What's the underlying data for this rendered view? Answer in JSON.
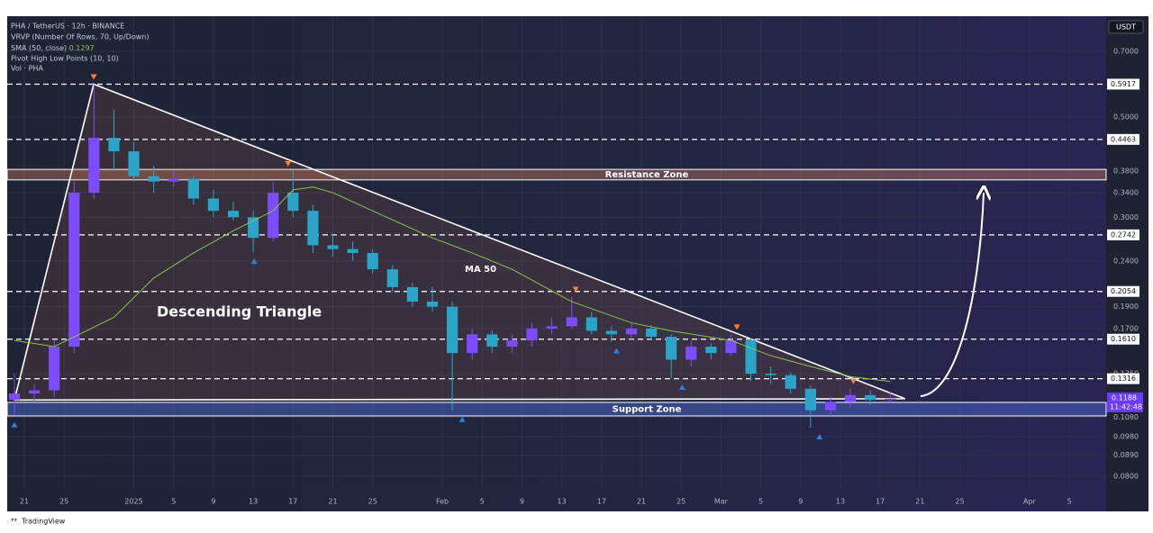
{
  "chart_data": {
    "type": "candlestick",
    "legend": [
      "PHA / TetherUS · 12h · BINANCE",
      "VRVP (Number Of Rows, 70, Up/Down)",
      "SMA (50, close)",
      "Pivot High Low Points (10, 10)",
      "Vol · PHA"
    ],
    "currency": "USDT",
    "log_scale": true,
    "grid": true,
    "up_color": "#7c4dff",
    "down_color": "#2aa5c8",
    "xlim": [
      -1.72,
      108.7
    ],
    "ylim": [
      0.0743,
      0.837
    ],
    "xticks": [
      {
        "value": 0,
        "label": "21"
      },
      {
        "value": 4,
        "label": "25"
      },
      {
        "value": 11,
        "label": "2025"
      },
      {
        "value": 15,
        "label": "5"
      },
      {
        "value": 19,
        "label": "9"
      },
      {
        "value": 23,
        "label": "13"
      },
      {
        "value": 27,
        "label": "17"
      },
      {
        "value": 31,
        "label": "21"
      },
      {
        "value": 35,
        "label": "25"
      },
      {
        "value": 42,
        "label": "Feb"
      },
      {
        "value": 46,
        "label": "5"
      },
      {
        "value": 50,
        "label": "9"
      },
      {
        "value": 54,
        "label": "13"
      },
      {
        "value": 58,
        "label": "17"
      },
      {
        "value": 62,
        "label": "21"
      },
      {
        "value": 66,
        "label": "25"
      },
      {
        "value": 70,
        "label": "Mar"
      },
      {
        "value": 74,
        "label": "5"
      },
      {
        "value": 78,
        "label": "9"
      },
      {
        "value": 82,
        "label": "13"
      },
      {
        "value": 86,
        "label": "17"
      },
      {
        "value": 90,
        "label": "21"
      },
      {
        "value": 94,
        "label": "25"
      },
      {
        "value": 101,
        "label": "Apr"
      },
      {
        "value": 105,
        "label": "5"
      }
    ],
    "yticks": [
      {
        "value": 0.7,
        "label": "0.7000"
      },
      {
        "value": 0.5,
        "label": "0.5000"
      },
      {
        "value": 0.38,
        "label": "0.3800"
      },
      {
        "value": 0.34,
        "label": "0.3400"
      },
      {
        "value": 0.3,
        "label": "0.3000"
      },
      {
        "value": 0.24,
        "label": "0.2400"
      },
      {
        "value": 0.19,
        "label": "0.1900"
      },
      {
        "value": 0.17,
        "label": "0.1700"
      },
      {
        "value": 0.135,
        "label": "0.1350"
      },
      {
        "value": 0.108,
        "label": "0.1080"
      },
      {
        "value": 0.098,
        "label": "0.0980"
      },
      {
        "value": 0.089,
        "label": "0.0890"
      },
      {
        "value": 0.08,
        "label": "0.0800"
      }
    ],
    "levels": [
      0.5917,
      0.4463,
      0.2742,
      0.2054,
      {
        "value": 0.161,
        "label": "0.1610"
      },
      0.1316
    ],
    "last_price": 0.1188,
    "countdown": "11:42:48",
    "candles": {
      "x": [
        -1,
        1,
        3,
        5,
        7,
        9,
        11,
        13,
        15,
        17,
        19,
        21,
        23,
        25,
        27,
        29,
        31,
        33,
        35,
        37,
        39,
        41,
        43,
        45,
        47,
        49,
        51,
        53,
        55,
        57,
        59,
        61,
        63,
        65,
        67,
        69,
        71,
        73,
        75,
        77,
        79,
        81,
        83,
        85,
        87
      ],
      "open": [
        0.118,
        0.122,
        0.124,
        0.155,
        0.34,
        0.45,
        0.42,
        0.37,
        0.36,
        0.365,
        0.33,
        0.31,
        0.3,
        0.27,
        0.34,
        0.31,
        0.26,
        0.255,
        0.25,
        0.23,
        0.21,
        0.195,
        0.19,
        0.15,
        0.165,
        0.155,
        0.16,
        0.17,
        0.172,
        0.18,
        0.168,
        0.165,
        0.17,
        0.163,
        0.145,
        0.155,
        0.15,
        0.16,
        0.135,
        0.134,
        0.125,
        0.112,
        0.117,
        0.121,
        0.118
      ],
      "high": [
        0.135,
        0.128,
        0.16,
        0.36,
        0.5917,
        0.52,
        0.44,
        0.39,
        0.38,
        0.37,
        0.345,
        0.325,
        0.31,
        0.36,
        0.38,
        0.32,
        0.275,
        0.265,
        0.255,
        0.235,
        0.215,
        0.21,
        0.195,
        0.17,
        0.168,
        0.165,
        0.175,
        0.18,
        0.2,
        0.185,
        0.172,
        0.175,
        0.173,
        0.165,
        0.16,
        0.158,
        0.165,
        0.162,
        0.14,
        0.136,
        0.127,
        0.12,
        0.125,
        0.124,
        0.123
      ],
      "low": [
        0.109,
        0.117,
        0.12,
        0.15,
        0.33,
        0.38,
        0.36,
        0.34,
        0.35,
        0.32,
        0.3,
        0.295,
        0.251,
        0.265,
        0.3,
        0.25,
        0.245,
        0.24,
        0.225,
        0.205,
        0.19,
        0.185,
        0.112,
        0.145,
        0.15,
        0.15,
        0.155,
        0.165,
        0.17,
        0.165,
        0.159,
        0.16,
        0.16,
        0.132,
        0.14,
        0.145,
        0.148,
        0.13,
        0.128,
        0.122,
        0.1025,
        0.108,
        0.114,
        0.115,
        0.116
      ],
      "close": [
        0.122,
        0.124,
        0.155,
        0.34,
        0.45,
        0.42,
        0.37,
        0.36,
        0.365,
        0.33,
        0.31,
        0.3,
        0.27,
        0.34,
        0.31,
        0.26,
        0.255,
        0.25,
        0.23,
        0.21,
        0.195,
        0.19,
        0.15,
        0.165,
        0.155,
        0.16,
        0.17,
        0.172,
        0.18,
        0.168,
        0.165,
        0.17,
        0.163,
        0.145,
        0.155,
        0.15,
        0.16,
        0.135,
        0.134,
        0.125,
        0.112,
        0.117,
        0.121,
        0.118,
        0.1188
      ]
    },
    "sma": {
      "name": "MA 50",
      "color": "#8bc34a",
      "x": [
        -1,
        3,
        9,
        13,
        17,
        21,
        25,
        27,
        29,
        31,
        35,
        41,
        45,
        49,
        55,
        61,
        65,
        71,
        75,
        79,
        83,
        87
      ],
      "values": [
        0.16,
        0.155,
        0.18,
        0.22,
        0.25,
        0.28,
        0.31,
        0.345,
        0.35,
        0.34,
        0.31,
        0.27,
        0.25,
        0.23,
        0.195,
        0.175,
        0.168,
        0.16,
        0.148,
        0.14,
        0.133,
        0.1297
      ]
    },
    "pivot_highs": {
      "color": "#ff7f2a",
      "x": [
        6.97,
        26.5,
        55.4,
        71.6,
        83.3
      ],
      "y": [
        0.5917,
        0.38,
        0.2,
        0.165,
        0.125
      ]
    },
    "pivot_lows": {
      "color": "#2f7fe0",
      "x": [
        -1.0,
        23.1,
        44.0,
        59.5,
        66.1,
        79.9
      ],
      "y": [
        0.109,
        0.251,
        0.112,
        0.159,
        0.132,
        0.1025
      ]
    },
    "resistance_zone": {
      "label": "Resistance Zone",
      "range": [
        0.363,
        0.383
      ]
    },
    "support_zone": {
      "label": "Support Zone",
      "range": [
        0.1088,
        0.1166
      ]
    },
    "triangle": {
      "label": "Descending Triangle",
      "x": [
        -1.0,
        6.97,
        88.5
      ],
      "y": [
        0.118,
        0.5917,
        0.1188
      ]
    },
    "brand": "TradingView"
  }
}
